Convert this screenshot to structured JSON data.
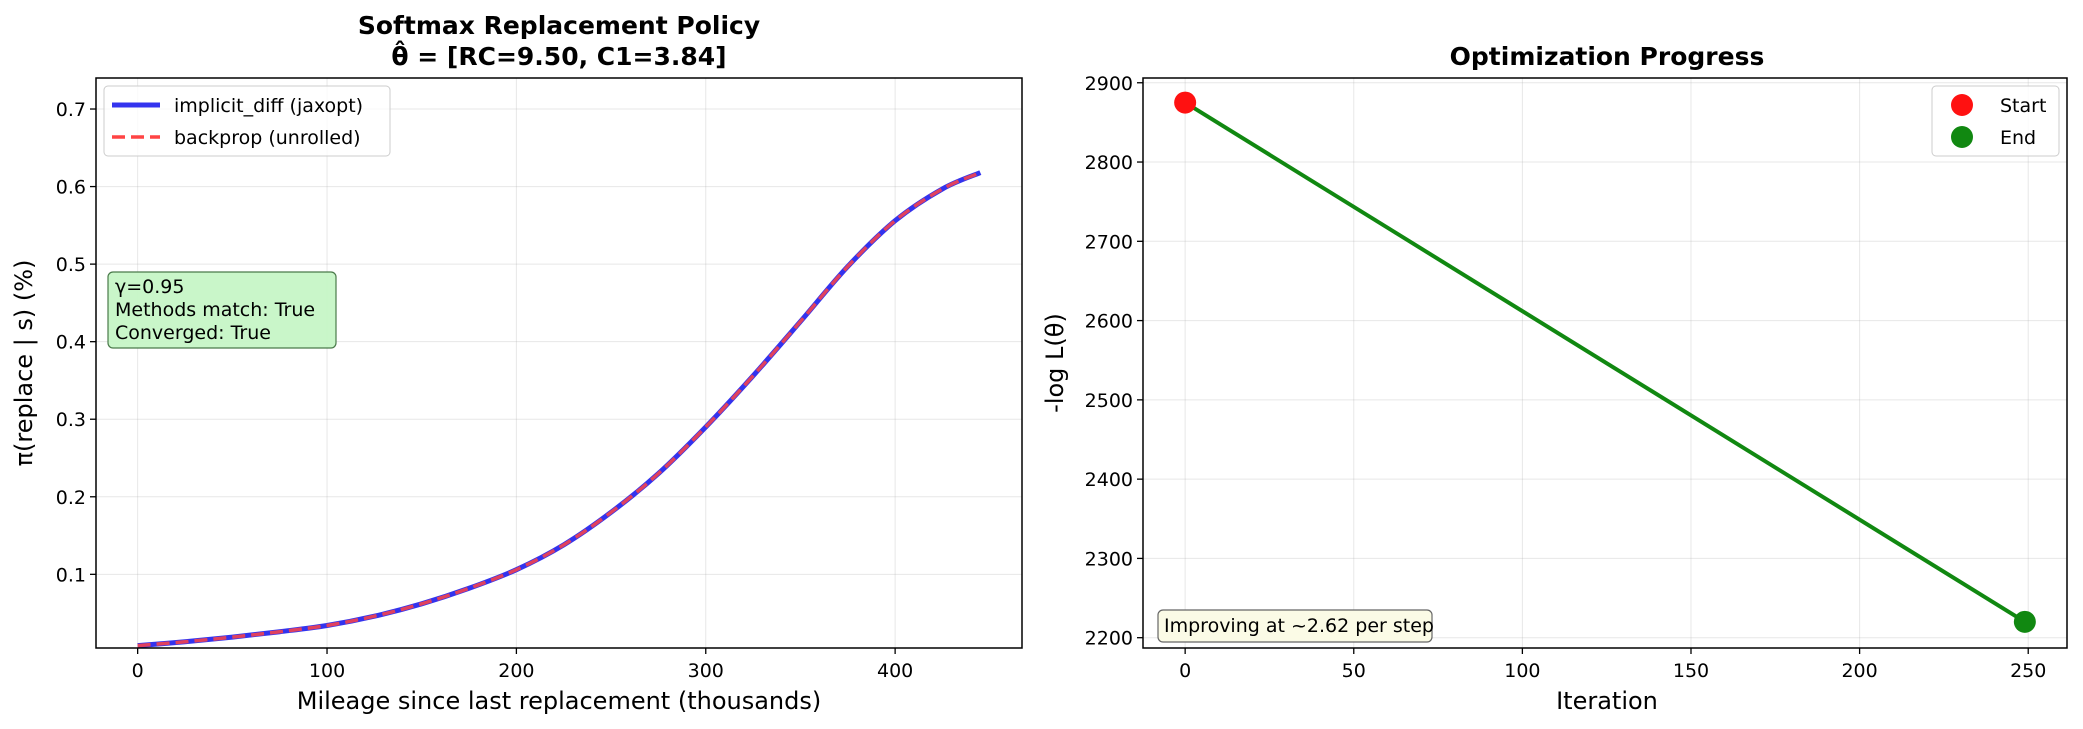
{
  "chart_data": [
    {
      "type": "line",
      "title": "Softmax Replacement Policy",
      "subtitle": "θ̂ = [RC=9.50, C1=3.84]",
      "xlabel": "Mileage since last replacement (thousands)",
      "ylabel": "π(replace | s)  (%)",
      "xlim": [
        -22,
        467
      ],
      "ylim": [
        0.005,
        0.74
      ],
      "xticks": [
        "0",
        "100",
        "200",
        "300",
        "400"
      ],
      "yticks": [
        "0.1",
        "0.2",
        "0.3",
        "0.4",
        "0.5",
        "0.6",
        "0.7"
      ],
      "grid": true,
      "legend_position": "upper-left",
      "x": [
        0,
        25,
        50,
        75,
        100,
        125,
        150,
        175,
        200,
        225,
        250,
        275,
        300,
        325,
        350,
        375,
        400,
        425,
        445
      ],
      "series": [
        {
          "name": "implicit_diff (jaxopt)",
          "color": "#3333ee",
          "style": "solid",
          "values": [
            0.008,
            0.013,
            0.019,
            0.026,
            0.034,
            0.046,
            0.062,
            0.082,
            0.106,
            0.138,
            0.18,
            0.23,
            0.29,
            0.356,
            0.426,
            0.497,
            0.556,
            0.597,
            0.618
          ]
        },
        {
          "name": "backprop (unrolled)",
          "color": "#ff4444",
          "style": "dashed",
          "values": [
            0.008,
            0.013,
            0.019,
            0.026,
            0.034,
            0.046,
            0.062,
            0.082,
            0.106,
            0.138,
            0.18,
            0.23,
            0.29,
            0.356,
            0.426,
            0.497,
            0.556,
            0.597,
            0.618
          ]
        }
      ],
      "annotation": {
        "lines": [
          "γ=0.95",
          "Methods match: True",
          "Converged: True"
        ],
        "box_color": "#c6f5c6"
      }
    },
    {
      "type": "line",
      "title": "Optimization Progress",
      "xlabel": "Iteration",
      "ylabel": "-log L(θ)",
      "xlim": [
        -12.5,
        261.5
      ],
      "ylim": [
        2187,
        2906
      ],
      "xticks": [
        "0",
        "50",
        "100",
        "150",
        "200",
        "250"
      ],
      "yticks": [
        "2200",
        "2300",
        "2400",
        "2500",
        "2600",
        "2700",
        "2800",
        "2900"
      ],
      "grid": true,
      "legend_position": "upper-right",
      "x": [
        0,
        249
      ],
      "series": [
        {
          "name": "",
          "color": "#118811",
          "style": "solid",
          "values": [
            2875,
            2220
          ]
        }
      ],
      "points": [
        {
          "name": "Start",
          "x": 0,
          "y": 2875,
          "color": "#ff1111"
        },
        {
          "name": "End",
          "x": 249,
          "y": 2220,
          "color": "#118811"
        }
      ],
      "annotation": {
        "lines": [
          "Improving at ~2.62 per step"
        ],
        "box_color": "#fbfbe6"
      }
    }
  ]
}
